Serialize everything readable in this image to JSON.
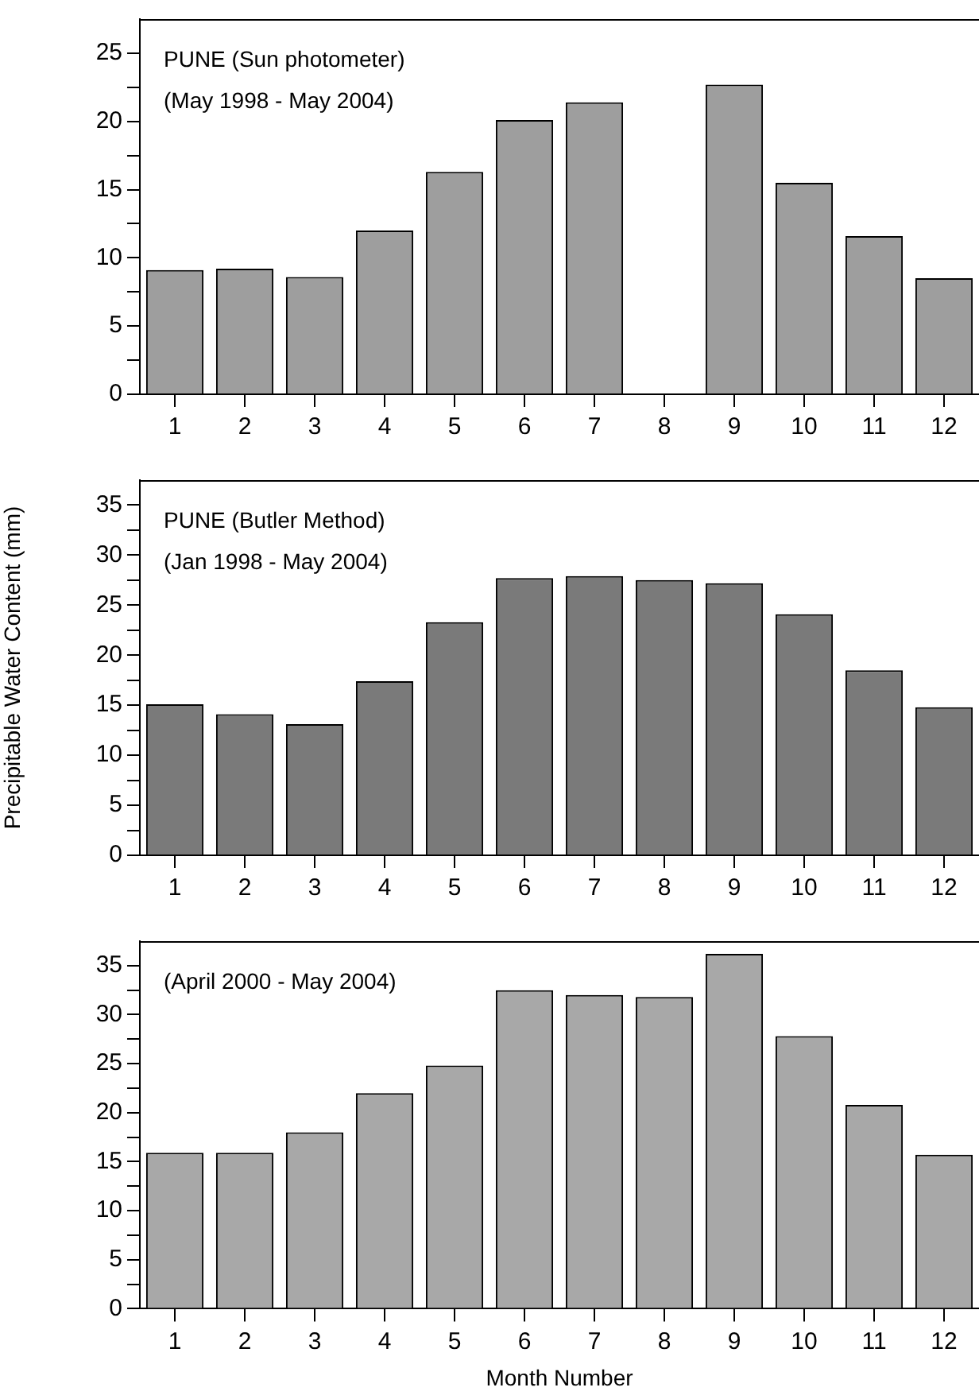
{
  "chart_data": [
    {
      "type": "bar",
      "annotations": [
        "PUNE (Sun photometer)",
        "(May 1998 - May 2004)"
      ],
      "x": [
        1,
        2,
        3,
        4,
        5,
        6,
        7,
        8,
        9,
        10,
        11,
        12
      ],
      "xlim": [
        0.5,
        12.5
      ],
      "xticks": [
        1,
        2,
        3,
        4,
        5,
        6,
        7,
        8,
        9,
        10,
        11,
        12
      ],
      "values": [
        9.1,
        9.2,
        8.6,
        12.0,
        16.3,
        20.1,
        21.4,
        null,
        22.7,
        15.5,
        11.6,
        8.5
      ],
      "color": "#9e9e9e",
      "ylim": [
        0,
        27.5
      ],
      "yticks": [
        0,
        {
          "value": 2.5,
          "label": null
        },
        5,
        {
          "value": 7.5,
          "label": null
        },
        10,
        {
          "value": 12.5,
          "label": null
        },
        15,
        {
          "value": 17.5,
          "label": null
        },
        20,
        {
          "value": 22.5,
          "label": null
        },
        25
      ],
      "grid": false,
      "legend": false
    },
    {
      "type": "bar",
      "ylabel": "Precipitable Water Content (mm)",
      "annotations": [
        "PUNE (Butler Method)",
        "(Jan 1998 - May 2004)"
      ],
      "x": [
        1,
        2,
        3,
        4,
        5,
        6,
        7,
        8,
        9,
        10,
        11,
        12
      ],
      "xlim": [
        0.5,
        12.5
      ],
      "xticks": [
        1,
        2,
        3,
        4,
        5,
        6,
        7,
        8,
        9,
        10,
        11,
        12
      ],
      "values": [
        15.1,
        14.1,
        13.1,
        17.4,
        23.3,
        27.7,
        27.9,
        27.5,
        27.2,
        24.1,
        18.5,
        14.8
      ],
      "color": "#7a7a7a",
      "ylim": [
        0,
        37.5
      ],
      "yticks": [
        0,
        {
          "value": 2.5,
          "label": null
        },
        5,
        {
          "value": 7.5,
          "label": null
        },
        10,
        {
          "value": 12.5,
          "label": null
        },
        15,
        {
          "value": 17.5,
          "label": null
        },
        20,
        {
          "value": 22.5,
          "label": null
        },
        25,
        {
          "value": 27.5,
          "label": null
        },
        30,
        {
          "value": 32.5,
          "label": null
        },
        35
      ],
      "grid": false,
      "legend": false
    },
    {
      "type": "bar",
      "xlabel": "Month Number",
      "annotations": [
        "(April 2000 - May 2004)"
      ],
      "x": [
        1,
        2,
        3,
        4,
        5,
        6,
        7,
        8,
        9,
        10,
        11,
        12
      ],
      "xlim": [
        0.5,
        12.5
      ],
      "xticks": [
        1,
        2,
        3,
        4,
        5,
        6,
        7,
        8,
        9,
        10,
        11,
        12
      ],
      "values": [
        15.9,
        15.9,
        18.0,
        22.0,
        24.8,
        32.5,
        32.0,
        31.8,
        36.2,
        27.8,
        20.8,
        15.7
      ],
      "color": "#a8a8a8",
      "ylim": [
        0,
        37.5
      ],
      "yticks": [
        0,
        {
          "value": 2.5,
          "label": null
        },
        5,
        {
          "value": 7.5,
          "label": null
        },
        10,
        {
          "value": 12.5,
          "label": null
        },
        15,
        {
          "value": 17.5,
          "label": null
        },
        20,
        {
          "value": 22.5,
          "label": null
        },
        25,
        {
          "value": 27.5,
          "label": null
        },
        30,
        {
          "value": 32.5,
          "label": null
        },
        35
      ],
      "grid": false,
      "legend": false
    }
  ]
}
